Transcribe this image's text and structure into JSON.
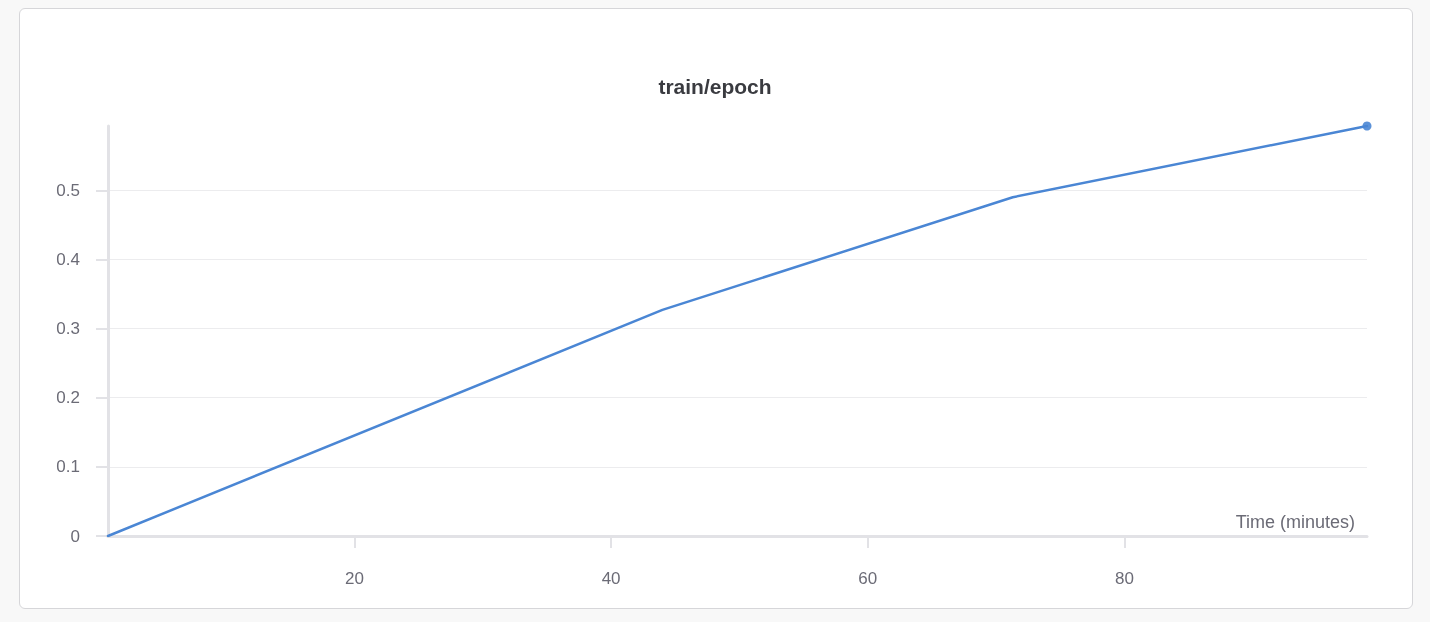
{
  "chart_data": {
    "type": "line",
    "title": "train/epoch",
    "xlabel": "Time (minutes)",
    "series": [
      {
        "color": "#4a86d4",
        "x": [
          0.8,
          44.0,
          71.3,
          98.9
        ],
        "values": [
          0,
          0.327,
          0.49,
          0.593
        ]
      },
      {
        "type": "scatter",
        "color": "#4a86d4",
        "x": [
          98.9
        ],
        "values": [
          0.593
        ]
      }
    ],
    "xlim": [
      0.8,
      98.9
    ],
    "ylim": [
      0,
      0.593
    ],
    "xticks": [
      20,
      40,
      60,
      80
    ],
    "yticks": [
      0,
      0.1,
      0.2,
      0.3,
      0.4,
      0.5
    ],
    "grid": "y",
    "line_style": "solid"
  }
}
